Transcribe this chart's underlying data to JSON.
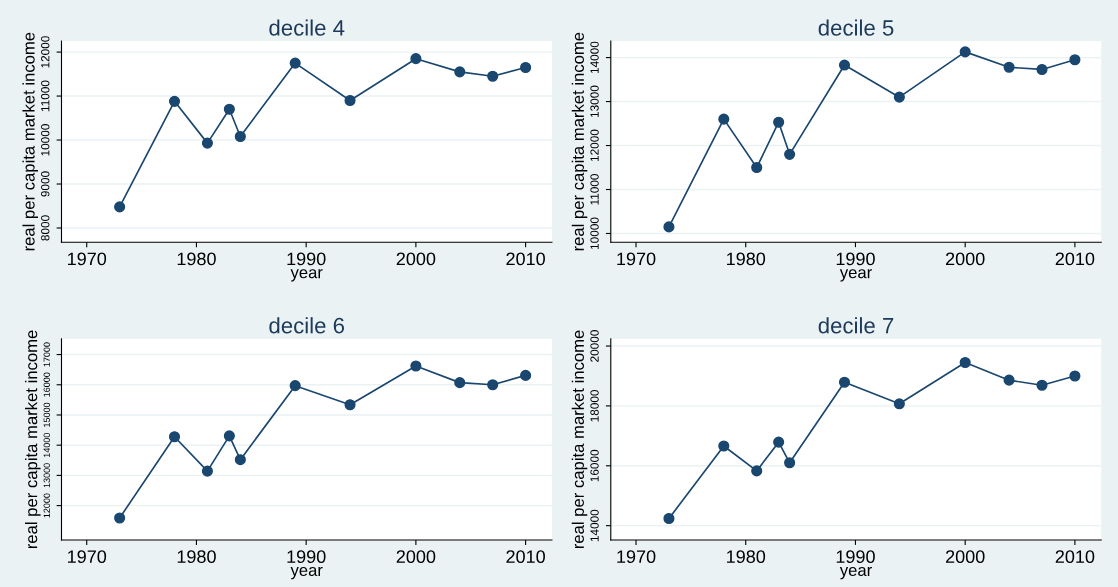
{
  "chart_data": [
    {
      "type": "line",
      "title": "decile 4",
      "xlabel": "year",
      "ylabel": "real per capita market income",
      "x": [
        1973,
        1978,
        1981,
        1983,
        1984,
        1989,
        1994,
        2000,
        2004,
        2007,
        2010
      ],
      "series": [
        {
          "color": "#1a476f",
          "values": [
            8480,
            10880,
            9930,
            10700,
            10080,
            11750,
            10900,
            11850,
            11550,
            11450,
            11650
          ]
        }
      ],
      "xlim": [
        1967.7,
        2012.4
      ],
      "xticks": [
        1970,
        1980,
        1990,
        2000,
        2010
      ],
      "ylim": [
        7675,
        12250
      ],
      "yticks": [
        8000,
        9000,
        10000,
        11000,
        12000
      ],
      "grid": "y",
      "marker": "circle",
      "legend": false
    },
    {
      "type": "line",
      "title": "decile 5",
      "xlabel": "year",
      "ylabel": "real per capita market income",
      "x": [
        1973,
        1978,
        1981,
        1983,
        1984,
        1989,
        1994,
        2000,
        2004,
        2007,
        2010
      ],
      "series": [
        {
          "color": "#1a476f",
          "values": [
            10150,
            12600,
            11500,
            12530,
            11800,
            13830,
            13100,
            14130,
            13780,
            13730,
            13950
          ]
        }
      ],
      "xlim": [
        1967.7,
        2012.4
      ],
      "xticks": [
        1970,
        1980,
        1990,
        2000,
        2010
      ],
      "ylim": [
        9800,
        14375
      ],
      "yticks": [
        10000,
        11000,
        12000,
        13000,
        14000
      ],
      "grid": "y",
      "marker": "circle",
      "legend": false
    },
    {
      "type": "line",
      "title": "decile 6",
      "xlabel": "year",
      "ylabel": "real per capita market income",
      "x": [
        1973,
        1978,
        1981,
        1983,
        1984,
        1989,
        1994,
        2000,
        2004,
        2007,
        2010
      ],
      "series": [
        {
          "color": "#1a476f",
          "values": [
            11590,
            14280,
            13140,
            14310,
            13520,
            15970,
            15340,
            16620,
            16070,
            16000,
            16310
          ]
        }
      ],
      "xlim": [
        1967.7,
        2012.4
      ],
      "xticks": [
        1970,
        1980,
        1990,
        2000,
        2010
      ],
      "ylim": [
        10860,
        17520
      ],
      "yticks": [
        12000,
        13000,
        14000,
        15000,
        16000,
        17000
      ],
      "grid": "y",
      "marker": "circle",
      "legend": false
    },
    {
      "type": "line",
      "title": "decile 7",
      "xlabel": "year",
      "ylabel": "real per capita market income",
      "x": [
        1973,
        1978,
        1981,
        1983,
        1984,
        1989,
        1994,
        2000,
        2004,
        2007,
        2010
      ],
      "series": [
        {
          "color": "#1a476f",
          "values": [
            14240,
            16660,
            15830,
            16790,
            16100,
            18790,
            18070,
            19450,
            18860,
            18690,
            19000
          ]
        }
      ],
      "xlim": [
        1967.7,
        2012.4
      ],
      "xticks": [
        1970,
        1980,
        1990,
        2000,
        2010
      ],
      "ylim": [
        13520,
        20240
      ],
      "yticks": [
        14000,
        16000,
        18000,
        20000
      ],
      "grid": "y",
      "marker": "circle",
      "legend": false
    }
  ]
}
